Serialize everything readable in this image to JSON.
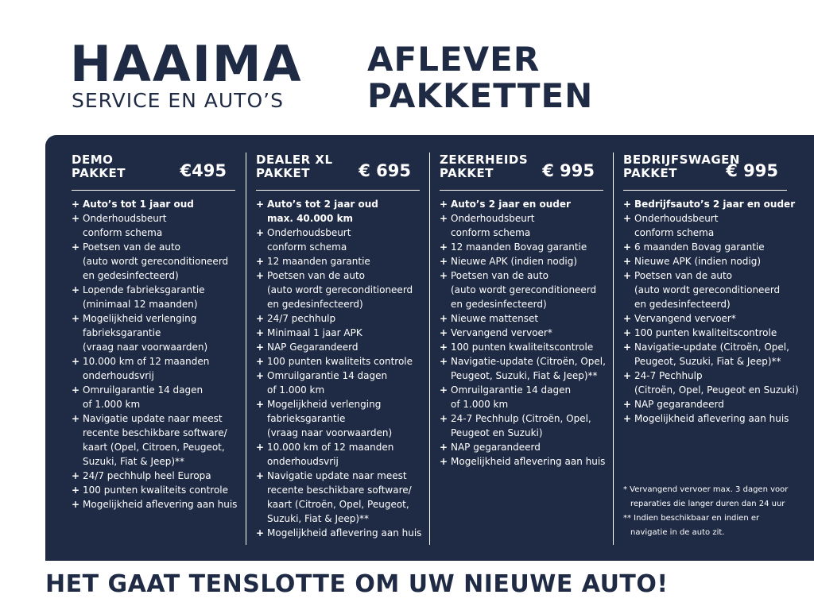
{
  "header": {
    "logo_main": "HAAIMA",
    "logo_sub": "SERVICE EN AUTO’S",
    "title": [
      "AFLEVER",
      "PAKKETTEN"
    ]
  },
  "packages": [
    {
      "name": [
        "DEMO",
        "PAKKET"
      ],
      "price": "€495",
      "items": [
        [
          "Auto’s tot 1 jaar oud"
        ],
        [
          "Onderhoudsbeurt",
          "conform schema"
        ],
        [
          "Poetsen van de auto",
          "(auto wordt gereconditioneerd",
          "en gedesinfecteerd)"
        ],
        [
          "Lopende fabrieksgarantie",
          "(minimaal 12 maanden)"
        ],
        [
          "Mogelijkheid verlenging",
          "fabrieksgarantie",
          "(vraag naar voorwaarden)"
        ],
        [
          "10.000 km of 12 maanden",
          "onderhoudsvrij"
        ],
        [
          "Omruilgarantie 14 dagen",
          "of 1.000 km"
        ],
        [
          "Navigatie update naar meest",
          "recente beschikbare software/",
          "kaart (Opel, Citroen,  Peugeot,",
          "Suzuki, Fiat & Jeep)**"
        ],
        [
          "24/7 pechhulp heel Europa"
        ],
        [
          "100 punten kwaliteits controle"
        ],
        [
          "Mogelijkheid aflevering aan huis"
        ]
      ]
    },
    {
      "name": [
        "DEALER XL",
        "PAKKET"
      ],
      "price": "€ 695",
      "items": [
        [
          "Auto’s tot 2 jaar oud",
          "max. 40.000 km"
        ],
        [
          "Onderhoudsbeurt",
          "conform schema"
        ],
        [
          "12 maanden garantie"
        ],
        [
          "Poetsen van de auto",
          "(auto wordt gereconditioneerd",
          "en gedesinfecteerd)"
        ],
        [
          "24/7 pechhulp"
        ],
        [
          "Minimaal 1 jaar APK"
        ],
        [
          "NAP Gegarandeerd"
        ],
        [
          "100 punten kwaliteits controle"
        ],
        [
          "Omruilgarantie 14 dagen",
          "of 1.000 km"
        ],
        [
          "Mogelijkheid verlenging",
          "fabrieksgarantie",
          "(vraag naar voorwaarden)"
        ],
        [
          "10.000 km of 12 maanden",
          "onderhoudsvrij"
        ],
        [
          "Navigatie update naar meest",
          "recente beschikbare software/",
          "kaart (Citroën, Opel, Peugeot,",
          "Suzuki, Fiat & Jeep)**"
        ],
        [
          "Mogelijkheid aflevering aan huis"
        ]
      ]
    },
    {
      "name": [
        "ZEKERHEIDS",
        "PAKKET"
      ],
      "price": "€ 995",
      "items": [
        [
          "Auto’s 2 jaar en ouder"
        ],
        [
          "Onderhoudsbeurt",
          "conform schema"
        ],
        [
          "12 maanden Bovag garantie"
        ],
        [
          "Nieuwe APK (indien nodig)"
        ],
        [
          "Poetsen van de auto",
          "(auto wordt gereconditioneerd",
          "en gedesinfecteerd)"
        ],
        [
          "Nieuwe mattenset"
        ],
        [
          "Vervangend vervoer*"
        ],
        [
          "100 punten kwaliteitscontrole"
        ],
        [
          "Navigatie-update (Citroën, Opel,",
          "Peugeot, Suzuki, Fiat & Jeep)**"
        ],
        [
          "Omruilgarantie 14 dagen",
          "of 1.000 km"
        ],
        [
          "24-7 Pechhulp (Citroën, Opel,",
          "Peugeot en Suzuki)"
        ],
        [
          "NAP gegarandeerd"
        ],
        [
          "Mogelijkheid aflevering aan huis"
        ]
      ]
    },
    {
      "name": [
        "BEDRIJFSWAGEN",
        "PAKKET"
      ],
      "price": "€ 995",
      "items": [
        [
          "Bedrijfsauto’s 2 jaar en ouder"
        ],
        [
          "Onderhoudsbeurt",
          "conform schema"
        ],
        [
          "6 maanden Bovag garantie"
        ],
        [
          "Nieuwe APK (indien nodig)"
        ],
        [
          "Poetsen van de auto",
          "(auto wordt gereconditioneerd",
          "en gedesinfecteerd)"
        ],
        [
          "Vervangend vervoer*"
        ],
        [
          "100 punten kwaliteitscontrole"
        ],
        [
          "Navigatie-update (Citroën, Opel,",
          "Peugeot, Suzuki, Fiat & Jeep)**"
        ],
        [
          "24-7 Pechhulp",
          "(Citroën, Opel, Peugeot en Suzuki)"
        ],
        [
          "NAP gegarandeerd"
        ],
        [
          "Mogelijkheid aflevering aan huis"
        ]
      ]
    }
  ],
  "footnotes": [
    "* Vervangend vervoer max. 3 dagen voor",
    "reparaties die langer duren dan 24 uur",
    "** Indien beschikbaar en indien er",
    "navigatie in de auto zit."
  ],
  "footer": "HET GAAT TENSLOTTE OM UW NIEUWE AUTO!"
}
